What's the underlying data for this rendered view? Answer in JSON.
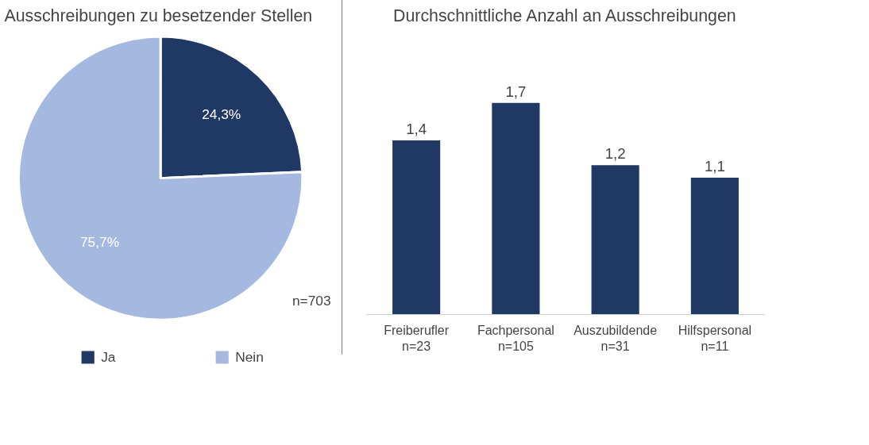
{
  "chart_data": [
    {
      "type": "pie",
      "title": "Ausschreibungen zu besetzender Stellen",
      "categories": [
        "Ja",
        "Nein"
      ],
      "values": [
        24.3,
        75.7
      ],
      "colors": [
        "#203864",
        "#a5b8e0"
      ],
      "value_labels": [
        "24,3%",
        "75,7%"
      ],
      "annotations": [
        "n=703"
      ],
      "legend": "bottom"
    },
    {
      "type": "bar",
      "title": "Durchschnittliche Anzahl an Ausschreibungen",
      "categories": [
        "Freiberufler\nn=23",
        "Fachpersonal\nn=105",
        "Auszubildende\nn=31",
        "Hilfspersonal\nn=11"
      ],
      "values": [
        1.4,
        1.7,
        1.2,
        1.1
      ],
      "color": "#203864",
      "value_labels": [
        "1,4",
        "1,7",
        "1,2",
        "1,1"
      ],
      "grid": false,
      "tick_labels": "x"
    }
  ]
}
